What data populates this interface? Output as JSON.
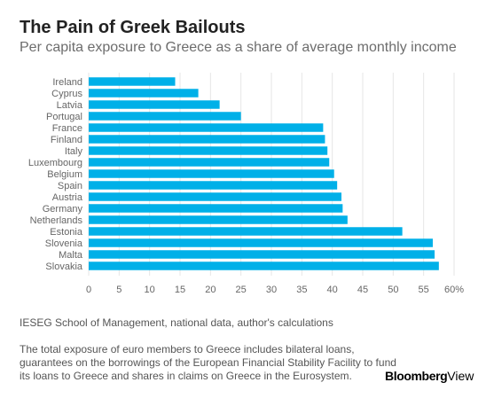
{
  "colors": {
    "bar": "#00b0e8",
    "grid": "#e6e6e6",
    "axis_text": "#666666",
    "title": "#222222"
  },
  "source": "IESEG School of Management, national data, author's calculations",
  "note": "The total exposure of euro members to Greece includes bilateral loans, guarantees on the borrowings of the European Financial Stability Facility to fund its loans to Greece and shares in claims on Greece in the Eurosystem.",
  "logo": {
    "part1": "Bloomberg",
    "part2": "View"
  },
  "chart_data": {
    "type": "bar",
    "orientation": "horizontal",
    "title": "The Pain of Greek Bailouts",
    "subtitle": "Per capita exposure to Greece as a share of average monthly income",
    "categories": [
      "Ireland",
      "Cyprus",
      "Latvia",
      "Portugal",
      "France",
      "Finland",
      "Italy",
      "Luxembourg",
      "Belgium",
      "Spain",
      "Austria",
      "Germany",
      "Netherlands",
      "Estonia",
      "Slovenia",
      "Malta",
      "Slovakia"
    ],
    "values": [
      14.2,
      18,
      21.5,
      25,
      38.5,
      38.8,
      39.2,
      39.5,
      40.3,
      40.8,
      41.5,
      41.7,
      42.5,
      51.5,
      56.5,
      56.8,
      57.5
    ],
    "xlim": [
      0,
      60
    ],
    "ticks": [
      0,
      5,
      10,
      15,
      20,
      25,
      30,
      35,
      40,
      45,
      50,
      55,
      60
    ],
    "tick_labels": [
      "0",
      "5",
      "10",
      "15",
      "20",
      "25",
      "30",
      "35",
      "40",
      "45",
      "50",
      "55",
      "60%"
    ],
    "grid": true,
    "legend": "none"
  }
}
